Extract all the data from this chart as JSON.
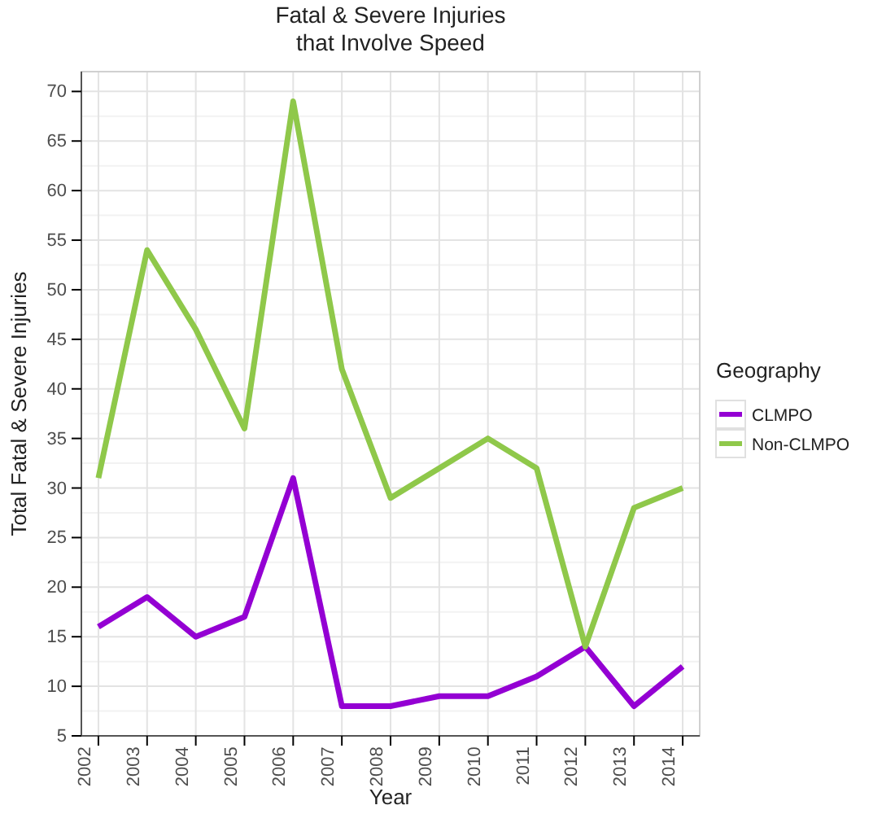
{
  "chart_data": {
    "type": "line",
    "title": "Fatal & Severe Injuries\nthat Involve Speed",
    "xlabel": "Year",
    "ylabel": "Total Fatal & Severe Injuries",
    "legend_title": "Geography",
    "categories": [
      "2002",
      "2003",
      "2004",
      "2005",
      "2006",
      "2007",
      "2008",
      "2009",
      "2010",
      "2011",
      "2012",
      "2013",
      "2014"
    ],
    "series": [
      {
        "name": "CLMPO",
        "color": "#9400d3",
        "values": [
          16,
          19,
          15,
          17,
          31,
          8,
          8,
          9,
          9,
          11,
          14,
          8,
          12
        ]
      },
      {
        "name": "Non-CLMPO",
        "color": "#8fc84a",
        "values": [
          31,
          54,
          46,
          36,
          69,
          42,
          29,
          32,
          35,
          32,
          14,
          28,
          30
        ]
      }
    ],
    "ylim": [
      5,
      72
    ],
    "yticks": [
      5,
      10,
      15,
      20,
      25,
      30,
      35,
      40,
      45,
      50,
      55,
      60,
      65,
      70
    ],
    "grid": true,
    "legend": "right",
    "line_style": "solid",
    "marker": "none"
  }
}
